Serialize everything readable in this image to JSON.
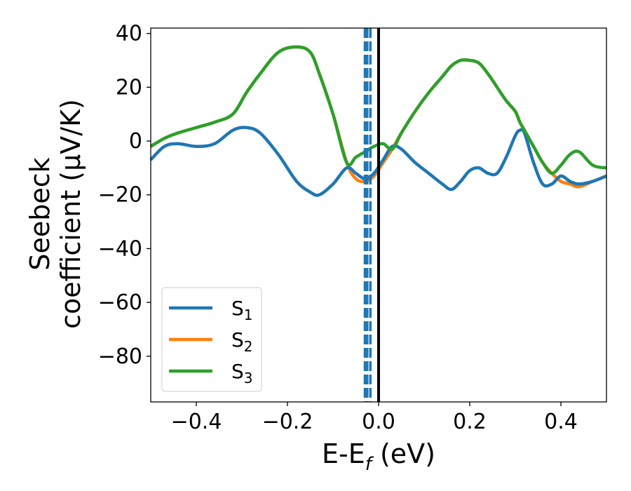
{
  "chart_data": {
    "type": "line",
    "xlabel": "E-E_f (eV)",
    "ylabel_line1": "Seebeck",
    "ylabel_line2": "coefficient  (μV/K)",
    "xlim": [
      -0.5,
      0.5
    ],
    "ylim": [
      -97,
      42
    ],
    "xticks": [
      -0.4,
      -0.2,
      0.0,
      0.2,
      0.4
    ],
    "xtick_labels": [
      "−0.4",
      "−0.2",
      "0.0",
      "0.2",
      "0.4"
    ],
    "yticks": [
      40,
      20,
      0,
      -20,
      -40,
      -60,
      -80
    ],
    "ytick_labels": [
      "40",
      "20",
      "0",
      "−20",
      "−40",
      "−60",
      "−80"
    ],
    "grid": false,
    "legend_position": "lower-left",
    "series": [
      {
        "name": "S1",
        "label_base": "S",
        "label_sub": "1",
        "color": "#1f77b4",
        "x": [
          -0.5,
          -0.47,
          -0.44,
          -0.4,
          -0.36,
          -0.32,
          -0.29,
          -0.26,
          -0.22,
          -0.18,
          -0.15,
          -0.13,
          -0.1,
          -0.07,
          -0.05,
          -0.03,
          -0.01,
          0.01,
          0.03,
          0.05,
          0.08,
          0.11,
          0.14,
          0.16,
          0.18,
          0.2,
          0.22,
          0.24,
          0.26,
          0.28,
          0.3,
          0.31,
          0.32,
          0.34,
          0.36,
          0.38,
          0.4,
          0.42,
          0.44,
          0.47,
          0.5
        ],
        "y": [
          -7,
          -2,
          -1,
          -2,
          -1,
          4,
          5,
          3,
          -5,
          -15,
          -19,
          -20,
          -16,
          -10,
          -12,
          -14,
          -12,
          -7,
          -2,
          -3,
          -8,
          -12,
          -16,
          -18,
          -15,
          -11,
          -10,
          -12,
          -12,
          -6,
          2,
          4,
          3,
          -8,
          -16,
          -16,
          -13,
          -15,
          -16,
          -15,
          -13
        ]
      },
      {
        "name": "S2",
        "label_base": "S",
        "label_sub": "2",
        "color": "#ff7f0e",
        "x": [
          -0.5,
          -0.47,
          -0.44,
          -0.4,
          -0.36,
          -0.32,
          -0.29,
          -0.26,
          -0.22,
          -0.18,
          -0.15,
          -0.13,
          -0.1,
          -0.07,
          -0.05,
          -0.03,
          -0.01,
          0.01,
          0.03,
          0.05,
          0.08,
          0.11,
          0.14,
          0.16,
          0.18,
          0.2,
          0.22,
          0.24,
          0.26,
          0.28,
          0.3,
          0.31,
          0.32,
          0.34,
          0.36,
          0.38,
          0.4,
          0.42,
          0.44,
          0.47,
          0.5
        ],
        "y": [
          -2,
          1,
          3,
          5,
          7,
          10,
          18,
          25,
          33,
          35,
          33,
          25,
          10,
          -8,
          -14,
          -15,
          -13,
          -8,
          -3,
          3,
          11,
          18,
          24,
          28,
          30,
          30,
          29,
          25,
          20,
          15,
          11,
          7,
          4,
          -2,
          -8,
          -12,
          -15,
          -16,
          -17,
          -15,
          -13
        ]
      },
      {
        "name": "S3",
        "label_base": "S",
        "label_sub": "3",
        "color": "#2ca02c",
        "x": [
          -0.5,
          -0.47,
          -0.44,
          -0.4,
          -0.36,
          -0.32,
          -0.29,
          -0.26,
          -0.22,
          -0.18,
          -0.15,
          -0.13,
          -0.1,
          -0.07,
          -0.05,
          -0.03,
          -0.01,
          0.01,
          0.03,
          0.05,
          0.08,
          0.11,
          0.14,
          0.16,
          0.18,
          0.2,
          0.22,
          0.24,
          0.26,
          0.28,
          0.3,
          0.31,
          0.32,
          0.34,
          0.36,
          0.38,
          0.4,
          0.42,
          0.44,
          0.47,
          0.5
        ],
        "y": [
          -2,
          1,
          3,
          5,
          7,
          10,
          18,
          25,
          33,
          35,
          33,
          25,
          10,
          -8,
          -6,
          -4,
          -2,
          -1,
          -3,
          3,
          11,
          18,
          24,
          28,
          30,
          30,
          29,
          25,
          20,
          15,
          11,
          7,
          4,
          -2,
          -8,
          -12,
          -9,
          -5,
          -4,
          -9,
          -10
        ]
      }
    ],
    "vertical_lines": [
      {
        "x": -0.03,
        "style": "dashed",
        "color": "#1f77b4"
      },
      {
        "x": -0.025,
        "style": "dashed",
        "color": "#1f77b4"
      },
      {
        "x": -0.018,
        "style": "dashed",
        "color": "#1f77b4"
      },
      {
        "x": 0.0,
        "style": "solid",
        "color": "#000000"
      }
    ]
  }
}
